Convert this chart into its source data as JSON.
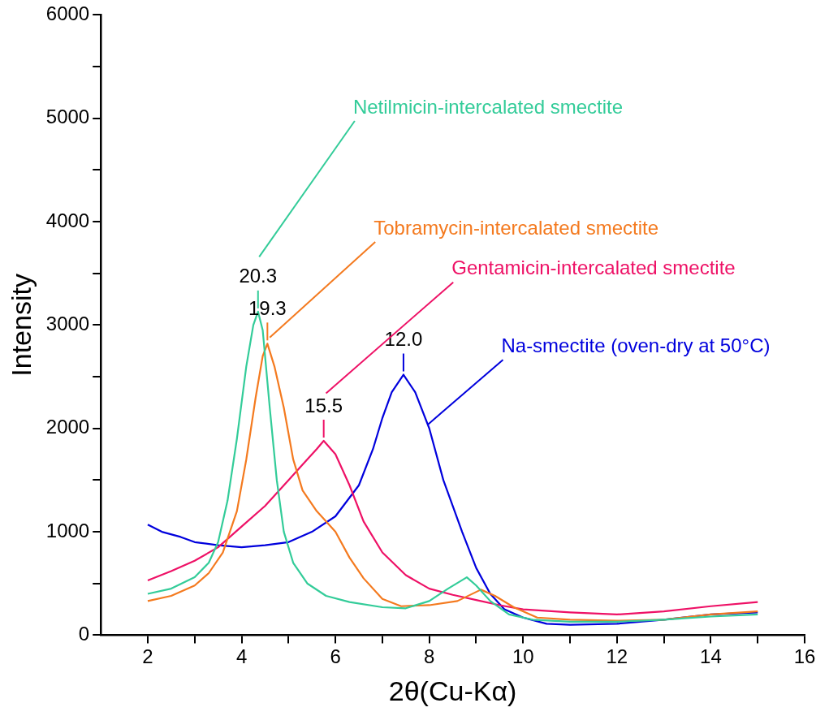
{
  "chart_data": {
    "type": "line",
    "xlabel": "2θ(Cu-Kα)",
    "ylabel": "Intensity",
    "xlim": [
      1,
      16
    ],
    "ylim": [
      0,
      6000
    ],
    "xticks": [
      2,
      {
        "value": 3,
        "label": null
      },
      4,
      {
        "value": 5,
        "label": null
      },
      6,
      {
        "value": 7,
        "label": null
      },
      8,
      {
        "value": 9,
        "label": null
      },
      10,
      {
        "value": 11,
        "label": null
      },
      12,
      {
        "value": 13,
        "label": null
      },
      14,
      {
        "value": 15,
        "label": null
      },
      16
    ],
    "yticks": [
      0,
      {
        "value": 500,
        "label": null
      },
      1000,
      {
        "value": 1500,
        "label": null
      },
      2000,
      {
        "value": 2500,
        "label": null
      },
      3000,
      {
        "value": 3500,
        "label": null
      },
      4000,
      {
        "value": 4500,
        "label": null
      },
      5000,
      {
        "value": 5500,
        "label": null
      },
      6000
    ],
    "grid": false,
    "legend": false,
    "marker": "none",
    "line_style": "solid",
    "series": [
      {
        "name": "Netilmicin-intercalated smectite",
        "color": "#33cc99",
        "x": [
          2,
          2.5,
          3,
          3.3,
          3.5,
          3.7,
          3.9,
          4.1,
          4.25,
          4.35,
          4.45,
          4.6,
          4.75,
          4.9,
          5.1,
          5.4,
          5.8,
          6.3,
          7,
          7.5,
          8,
          8.4,
          8.8,
          9,
          9.3,
          9.7,
          10.2,
          11,
          12,
          13,
          14,
          15
        ],
        "values": [
          400,
          450,
          560,
          700,
          900,
          1300,
          1900,
          2600,
          3000,
          3130,
          2950,
          2200,
          1500,
          1000,
          700,
          500,
          380,
          320,
          270,
          260,
          330,
          450,
          560,
          480,
          330,
          200,
          150,
          130,
          130,
          150,
          180,
          200
        ]
      },
      {
        "name": "Tobramycin-intercalated smectite",
        "color": "#f47a1f",
        "x": [
          2,
          2.5,
          3,
          3.3,
          3.6,
          3.9,
          4.1,
          4.3,
          4.45,
          4.55,
          4.7,
          4.9,
          5.1,
          5.3,
          5.6,
          6,
          6.3,
          6.6,
          7,
          7.4,
          8,
          8.6,
          9.1,
          9.4,
          9.8,
          10.3,
          11,
          12,
          13,
          14,
          15
        ],
        "values": [
          330,
          380,
          480,
          600,
          800,
          1200,
          1700,
          2300,
          2700,
          2820,
          2600,
          2200,
          1700,
          1400,
          1200,
          1000,
          750,
          550,
          350,
          280,
          290,
          330,
          440,
          380,
          270,
          170,
          150,
          140,
          150,
          200,
          230
        ]
      },
      {
        "name": "Gentamicin-intercalated smectite",
        "color": "#ee1166",
        "x": [
          2,
          2.5,
          3,
          3.5,
          4,
          4.5,
          5,
          5.3,
          5.6,
          5.75,
          6,
          6.3,
          6.6,
          7,
          7.5,
          8,
          8.5,
          9,
          9.5,
          10,
          11,
          12,
          13,
          14,
          15
        ],
        "values": [
          530,
          620,
          720,
          850,
          1050,
          1250,
          1500,
          1650,
          1800,
          1880,
          1750,
          1450,
          1100,
          800,
          580,
          450,
          390,
          340,
          290,
          250,
          220,
          200,
          230,
          280,
          320
        ]
      },
      {
        "name": "Na-smectite (oven-dry at 50°C)",
        "color": "#0000dd",
        "x": [
          2,
          2.3,
          2.7,
          3,
          3.5,
          4,
          4.5,
          5,
          5.5,
          6,
          6.5,
          6.8,
          7,
          7.2,
          7.45,
          7.7,
          8,
          8.3,
          8.7,
          9,
          9.3,
          9.6,
          10,
          10.5,
          11,
          12,
          13,
          14,
          15
        ],
        "values": [
          1070,
          1000,
          950,
          900,
          870,
          850,
          870,
          900,
          1000,
          1150,
          1450,
          1800,
          2100,
          2350,
          2520,
          2350,
          2000,
          1500,
          1000,
          650,
          400,
          250,
          170,
          110,
          100,
          110,
          150,
          200,
          220
        ]
      }
    ],
    "annotations": [
      {
        "text": "20.3",
        "x": 4.35,
        "y": 3130
      },
      {
        "text": "19.3",
        "x": 4.55,
        "y": 2820
      },
      {
        "text": "15.5",
        "x": 5.75,
        "y": 1880
      },
      {
        "text": "12.0",
        "x": 7.45,
        "y": 2520
      }
    ]
  }
}
